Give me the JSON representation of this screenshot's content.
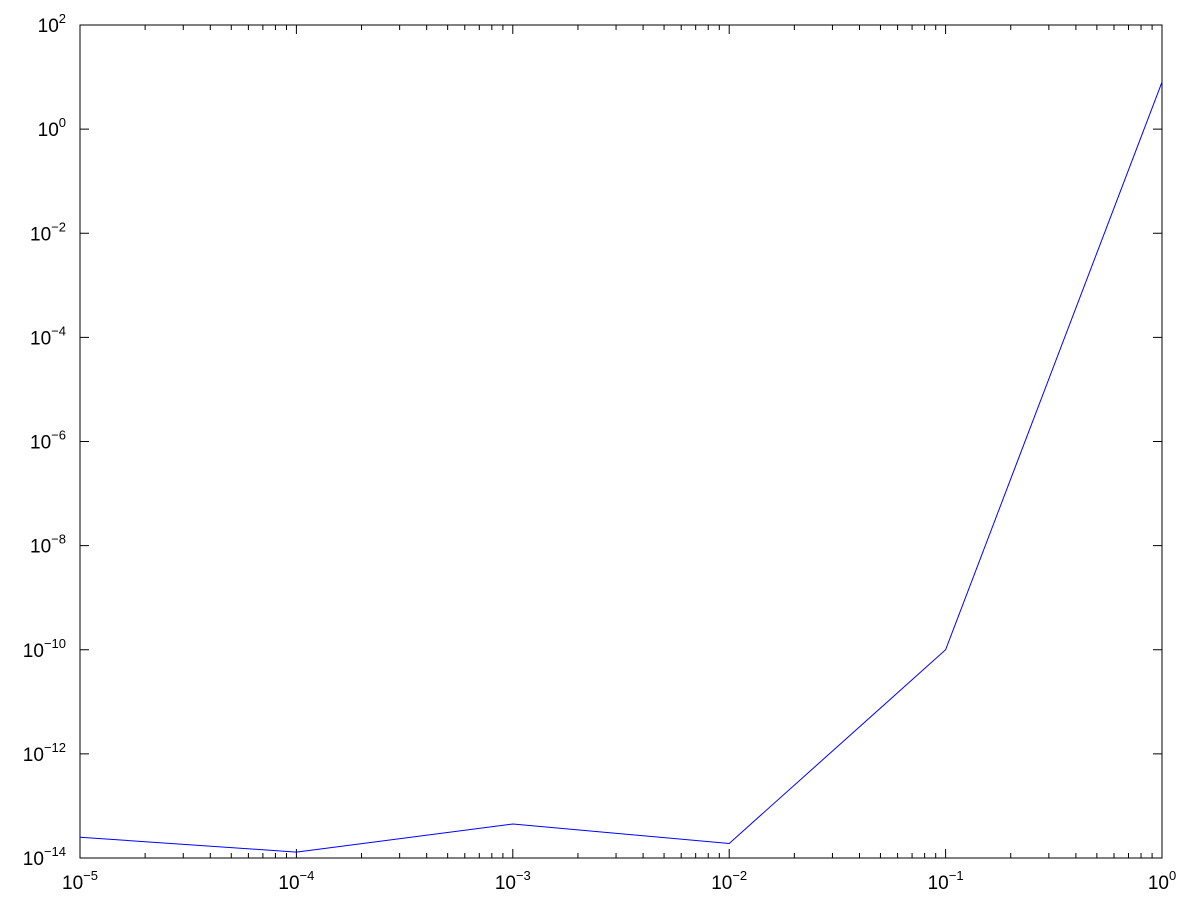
{
  "chart_data": {
    "type": "line",
    "title": "",
    "xlabel": "",
    "ylabel": "",
    "xscale": "log",
    "yscale": "log",
    "xlim": [
      1e-05,
      1
    ],
    "ylim": [
      1e-14,
      100
    ],
    "grid": false,
    "colors": {
      "series": "#0000ff",
      "axes": "#000000",
      "background": "#ffffff"
    },
    "x_ticks": [
      {
        "value": 1e-05,
        "base": "10",
        "exp": "−5"
      },
      {
        "value": 0.0001,
        "base": "10",
        "exp": "−4"
      },
      {
        "value": 0.001,
        "base": "10",
        "exp": "−3"
      },
      {
        "value": 0.01,
        "base": "10",
        "exp": "−2"
      },
      {
        "value": 0.1,
        "base": "10",
        "exp": "−1"
      },
      {
        "value": 1,
        "base": "10",
        "exp": "0"
      }
    ],
    "y_ticks": [
      {
        "value": 1e-14,
        "base": "10",
        "exp": "−14"
      },
      {
        "value": 1e-12,
        "base": "10",
        "exp": "−12"
      },
      {
        "value": 1e-10,
        "base": "10",
        "exp": "−10"
      },
      {
        "value": 1e-08,
        "base": "10",
        "exp": "−8"
      },
      {
        "value": 1e-06,
        "base": "10",
        "exp": "−6"
      },
      {
        "value": 0.0001,
        "base": "10",
        "exp": "−4"
      },
      {
        "value": 0.01,
        "base": "10",
        "exp": "−2"
      },
      {
        "value": 1,
        "base": "10",
        "exp": "0"
      },
      {
        "value": 100,
        "base": "10",
        "exp": "2"
      }
    ],
    "series": [
      {
        "x": [
          1e-05,
          0.0001,
          0.001,
          0.01,
          0.1,
          1
        ],
        "values": [
          2.5e-14,
          1.3e-14,
          4.5e-14,
          1.9e-14,
          1e-10,
          8.0
        ]
      }
    ]
  }
}
